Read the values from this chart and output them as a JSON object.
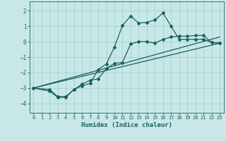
{
  "xlabel": "Humidex (Indice chaleur)",
  "background_color": "#c8e8e8",
  "grid_color": "#a8cece",
  "line_color": "#1a6060",
  "xlim": [
    -0.5,
    23.5
  ],
  "ylim": [
    -4.6,
    2.6
  ],
  "yticks": [
    -4,
    -3,
    -2,
    -1,
    0,
    1,
    2
  ],
  "xticks": [
    0,
    1,
    2,
    3,
    4,
    5,
    6,
    7,
    8,
    9,
    10,
    11,
    12,
    13,
    14,
    15,
    16,
    17,
    18,
    19,
    20,
    21,
    22,
    23
  ],
  "line1_x": [
    0,
    2,
    3,
    4,
    5,
    6,
    7,
    8,
    9,
    10,
    11,
    12,
    13,
    14,
    15,
    16,
    17,
    18,
    19,
    20,
    21,
    22,
    23
  ],
  "line1_y": [
    -3.0,
    -3.2,
    -3.6,
    -3.6,
    -3.1,
    -2.85,
    -2.7,
    -1.8,
    -1.45,
    -0.35,
    1.05,
    1.65,
    1.2,
    1.25,
    1.4,
    1.85,
    1.0,
    0.15,
    0.15,
    0.15,
    0.15,
    -0.05,
    -0.1
  ],
  "line2_x": [
    0,
    2,
    3,
    4,
    5,
    6,
    7,
    8,
    9,
    10,
    11,
    12,
    13,
    14,
    15,
    16,
    17,
    18,
    19,
    20,
    21,
    22,
    23
  ],
  "line2_y": [
    -3.0,
    -3.1,
    -3.55,
    -3.55,
    -3.1,
    -2.75,
    -2.5,
    -2.4,
    -1.75,
    -1.4,
    -1.35,
    -0.15,
    0.0,
    0.0,
    -0.1,
    0.15,
    0.3,
    0.35,
    0.35,
    0.4,
    0.4,
    -0.05,
    -0.1
  ],
  "line3_x": [
    0,
    23
  ],
  "line3_y": [
    -3.0,
    0.3
  ],
  "line4_x": [
    0,
    23
  ],
  "line4_y": [
    -3.0,
    -0.1
  ]
}
